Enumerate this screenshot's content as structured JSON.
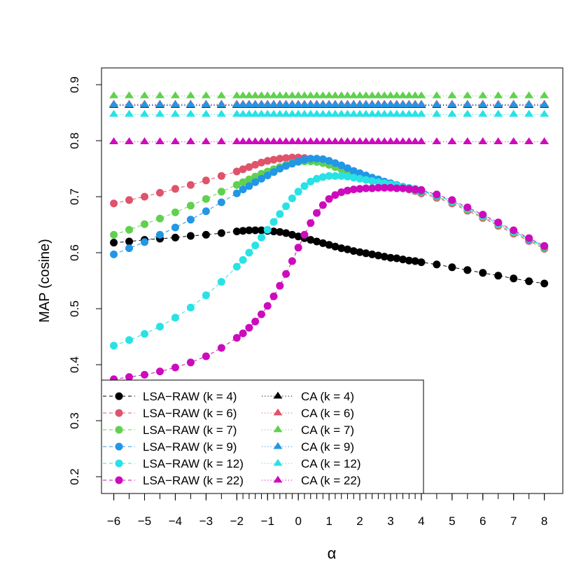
{
  "chart_data": {
    "type": "line",
    "xlabel": "α",
    "ylabel": "MAP (cosine)",
    "xlim": [
      -6.4,
      8.6
    ],
    "ylim": [
      0.17,
      0.93
    ],
    "xticks": [
      -6,
      -5,
      -4,
      -3,
      -2,
      -1,
      0,
      1,
      2,
      3,
      4,
      5,
      6,
      7,
      8
    ],
    "xtick_labels": [
      "−6",
      "−5",
      "−4",
      "−3",
      "−2",
      "−1",
      "0",
      "1",
      "2",
      "3",
      "4",
      "5",
      "6",
      "7",
      "8"
    ],
    "yticks": [
      0.2,
      0.3,
      0.4,
      0.5,
      0.6,
      0.7,
      0.8,
      0.9
    ],
    "ytick_labels": [
      "0.2",
      "0.3",
      "0.4",
      "0.5",
      "0.6",
      "0.7",
      "0.8",
      "0.9"
    ],
    "grid": false,
    "legend_position": "bottom-left",
    "x_values": [
      -6,
      -5.5,
      -5,
      -4.5,
      -4,
      -3.5,
      -3,
      -2.5,
      -2,
      -1.8,
      -1.6,
      -1.4,
      -1.2,
      -1,
      -0.8,
      -0.6,
      -0.4,
      -0.2,
      0,
      0.2,
      0.4,
      0.6,
      0.8,
      1,
      1.2,
      1.4,
      1.6,
      1.8,
      2,
      2.2,
      2.4,
      2.6,
      2.8,
      3,
      3.2,
      3.4,
      3.6,
      3.8,
      4,
      4.5,
      5,
      5.5,
      6,
      6.5,
      7,
      7.5,
      8
    ],
    "series": [
      {
        "name": "LSA−RAW (k = 4)",
        "color": "#000000",
        "marker": "circle",
        "values": [
          0.618,
          0.62,
          0.623,
          0.625,
          0.627,
          0.63,
          0.632,
          0.635,
          0.638,
          0.639,
          0.64,
          0.64,
          0.64,
          0.639,
          0.638,
          0.637,
          0.635,
          0.632,
          0.629,
          0.626,
          0.623,
          0.62,
          0.617,
          0.614,
          0.611,
          0.608,
          0.606,
          0.603,
          0.601,
          0.599,
          0.597,
          0.595,
          0.593,
          0.591,
          0.59,
          0.588,
          0.586,
          0.585,
          0.583,
          0.579,
          0.574,
          0.569,
          0.564,
          0.559,
          0.554,
          0.549,
          0.545
        ]
      },
      {
        "name": "LSA−RAW (k = 6)",
        "color": "#DF536B",
        "marker": "circle",
        "values": [
          0.688,
          0.694,
          0.7,
          0.707,
          0.714,
          0.721,
          0.729,
          0.737,
          0.745,
          0.749,
          0.753,
          0.757,
          0.761,
          0.764,
          0.766,
          0.768,
          0.769,
          0.77,
          0.77,
          0.769,
          0.767,
          0.764,
          0.761,
          0.757,
          0.753,
          0.749,
          0.745,
          0.742,
          0.738,
          0.735,
          0.732,
          0.728,
          0.725,
          0.722,
          0.719,
          0.716,
          0.713,
          0.71,
          0.706,
          0.698,
          0.688,
          0.675,
          0.662,
          0.648,
          0.634,
          0.621,
          0.607
        ]
      },
      {
        "name": "LSA−RAW (k = 7)",
        "color": "#61D04F",
        "marker": "circle",
        "values": [
          0.632,
          0.641,
          0.651,
          0.661,
          0.672,
          0.684,
          0.696,
          0.709,
          0.721,
          0.726,
          0.731,
          0.736,
          0.741,
          0.745,
          0.749,
          0.753,
          0.757,
          0.76,
          0.762,
          0.763,
          0.763,
          0.762,
          0.76,
          0.757,
          0.753,
          0.749,
          0.745,
          0.741,
          0.738,
          0.735,
          0.732,
          0.729,
          0.726,
          0.723,
          0.72,
          0.717,
          0.714,
          0.711,
          0.708,
          0.7,
          0.69,
          0.677,
          0.664,
          0.65,
          0.636,
          0.623,
          0.609
        ]
      },
      {
        "name": "LSA−RAW (k = 9)",
        "color": "#2297E6",
        "marker": "circle",
        "values": [
          0.597,
          0.608,
          0.619,
          0.632,
          0.645,
          0.659,
          0.674,
          0.69,
          0.706,
          0.713,
          0.719,
          0.726,
          0.732,
          0.738,
          0.744,
          0.75,
          0.755,
          0.759,
          0.763,
          0.766,
          0.768,
          0.768,
          0.767,
          0.764,
          0.76,
          0.756,
          0.751,
          0.746,
          0.742,
          0.738,
          0.734,
          0.731,
          0.727,
          0.724,
          0.721,
          0.718,
          0.715,
          0.712,
          0.71,
          0.702,
          0.692,
          0.679,
          0.666,
          0.652,
          0.638,
          0.624,
          0.611
        ]
      },
      {
        "name": "LSA−RAW (k = 12)",
        "color": "#28E2E5",
        "marker": "circle",
        "values": [
          0.434,
          0.444,
          0.455,
          0.468,
          0.484,
          0.502,
          0.524,
          0.548,
          0.575,
          0.587,
          0.6,
          0.613,
          0.627,
          0.641,
          0.655,
          0.669,
          0.683,
          0.697,
          0.709,
          0.719,
          0.727,
          0.732,
          0.735,
          0.737,
          0.737,
          0.737,
          0.736,
          0.734,
          0.732,
          0.73,
          0.728,
          0.726,
          0.724,
          0.722,
          0.72,
          0.718,
          0.716,
          0.714,
          0.712,
          0.703,
          0.692,
          0.679,
          0.666,
          0.652,
          0.638,
          0.625,
          0.612
        ]
      },
      {
        "name": "LSA−RAW (k = 22)",
        "color": "#CD0BBC",
        "marker": "circle",
        "values": [
          0.374,
          0.378,
          0.382,
          0.388,
          0.395,
          0.404,
          0.415,
          0.43,
          0.448,
          0.456,
          0.466,
          0.477,
          0.49,
          0.505,
          0.522,
          0.541,
          0.562,
          0.585,
          0.609,
          0.632,
          0.653,
          0.671,
          0.685,
          0.696,
          0.703,
          0.708,
          0.711,
          0.713,
          0.714,
          0.715,
          0.715,
          0.716,
          0.716,
          0.716,
          0.715,
          0.715,
          0.714,
          0.713,
          0.712,
          0.704,
          0.694,
          0.681,
          0.668,
          0.654,
          0.64,
          0.626,
          0.612
        ]
      },
      {
        "name": "CA (k = 4)",
        "color": "#000000",
        "marker": "triangle",
        "constant": 0.863
      },
      {
        "name": "CA (k = 6)",
        "color": "#DF536B",
        "marker": "triangle",
        "constant": 0.865
      },
      {
        "name": "CA (k = 7)",
        "color": "#61D04F",
        "marker": "triangle",
        "constant": 0.88
      },
      {
        "name": "CA (k = 9)",
        "color": "#2297E6",
        "marker": "triangle",
        "constant": 0.864
      },
      {
        "name": "CA (k = 12)",
        "color": "#28E2E5",
        "marker": "triangle",
        "constant": 0.847
      },
      {
        "name": "CA (k = 22)",
        "color": "#CD0BBC",
        "marker": "triangle",
        "constant": 0.798
      }
    ]
  }
}
